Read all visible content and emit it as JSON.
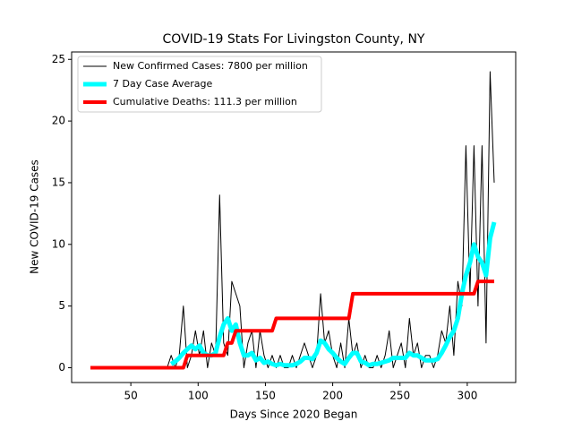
{
  "chart_data": {
    "type": "line",
    "title": "COVID-19 Stats For Livingston County, NY",
    "xlabel": "Days Since 2020 Began",
    "ylabel": "New COVID-19 Cases",
    "x": [
      20,
      23,
      26,
      29,
      32,
      35,
      38,
      41,
      44,
      47,
      50,
      53,
      56,
      59,
      62,
      65,
      68,
      71,
      74,
      77,
      80,
      83,
      86,
      89,
      92,
      95,
      98,
      101,
      104,
      107,
      110,
      113,
      116,
      119,
      122,
      125,
      128,
      131,
      134,
      137,
      140,
      143,
      146,
      149,
      152,
      155,
      158,
      161,
      164,
      167,
      170,
      173,
      176,
      179,
      182,
      185,
      188,
      191,
      194,
      197,
      200,
      203,
      206,
      209,
      212,
      215,
      218,
      221,
      224,
      227,
      230,
      233,
      236,
      239,
      242,
      245,
      248,
      251,
      254,
      257,
      260,
      263,
      266,
      269,
      272,
      275,
      278,
      281,
      284,
      287,
      290,
      293,
      296,
      299,
      302,
      305,
      308,
      311,
      314,
      317,
      320
    ],
    "series": [
      {
        "name": "New Confirmed Cases: 7800 per million",
        "color": "#000000",
        "width": 1,
        "values": [
          0,
          0,
          0,
          0,
          0,
          0,
          0,
          0,
          0,
          0,
          0,
          0,
          0,
          0,
          0,
          0,
          0,
          0,
          0,
          0,
          1,
          0,
          1,
          5,
          0,
          1,
          3,
          1,
          3,
          0,
          2,
          1,
          14,
          2,
          1,
          7,
          6,
          5,
          0,
          2,
          3,
          0,
          3,
          1,
          0,
          1,
          0,
          1,
          0,
          0,
          1,
          0,
          1,
          2,
          1,
          0,
          1,
          6,
          2,
          3,
          1,
          0,
          2,
          0,
          4,
          1,
          2,
          0,
          1,
          0,
          0,
          1,
          0,
          1,
          3,
          0,
          1,
          2,
          0,
          4,
          1,
          2,
          0,
          1,
          1,
          0,
          1,
          3,
          2,
          5,
          1,
          7,
          5,
          18,
          6,
          18,
          5,
          18,
          2,
          24,
          15
        ]
      },
      {
        "name": "7 Day Case Average",
        "color": "#00ffff",
        "width": 5,
        "values": [
          null,
          null,
          null,
          null,
          null,
          null,
          null,
          null,
          null,
          null,
          null,
          null,
          null,
          null,
          null,
          null,
          null,
          null,
          null,
          null,
          0.3,
          0.5,
          0.8,
          1.2,
          1.5,
          1.8,
          1.5,
          1.8,
          1.2,
          1.0,
          1.0,
          1.2,
          2.5,
          3.5,
          4.0,
          3.0,
          3.5,
          2.0,
          1.0,
          1.0,
          1.2,
          0.6,
          0.8,
          0.4,
          0.5,
          0.3,
          0.2,
          0.3,
          0.2,
          0.2,
          0.2,
          0.3,
          0.5,
          0.8,
          0.8,
          0.7,
          1.2,
          2.2,
          2.0,
          1.5,
          1.2,
          0.8,
          0.5,
          0.3,
          0.8,
          1.2,
          1.2,
          0.5,
          0.4,
          0.2,
          0.3,
          0.3,
          0.4,
          0.5,
          0.6,
          0.8,
          0.8,
          0.8,
          0.8,
          1.2,
          1.0,
          1.0,
          0.8,
          0.6,
          0.6,
          0.6,
          0.7,
          1.2,
          1.8,
          2.5,
          3.0,
          4.0,
          6.0,
          7.5,
          8.5,
          10.0,
          9.0,
          8.5,
          7.5,
          10.5,
          11.8
        ]
      },
      {
        "name": "Cumulative Deaths: 111.3 per million",
        "color": "#ff0000",
        "width": 4,
        "values": [
          0,
          0,
          0,
          0,
          0,
          0,
          0,
          0,
          0,
          0,
          0,
          0,
          0,
          0,
          0,
          0,
          0,
          0,
          0,
          0,
          0,
          0,
          0,
          0,
          1,
          1,
          1,
          1,
          1,
          1,
          1,
          1,
          1,
          1,
          2,
          2,
          3,
          3,
          3,
          3,
          3,
          3,
          3,
          3,
          3,
          3,
          4,
          4,
          4,
          4,
          4,
          4,
          4,
          4,
          4,
          4,
          4,
          4,
          4,
          4,
          4,
          4,
          4,
          4,
          4,
          6,
          6,
          6,
          6,
          6,
          6,
          6,
          6,
          6,
          6,
          6,
          6,
          6,
          6,
          6,
          6,
          6,
          6,
          6,
          6,
          6,
          6,
          6,
          6,
          6,
          6,
          6,
          6,
          6,
          6,
          6,
          7,
          7,
          7,
          7,
          7
        ]
      }
    ],
    "xlim": [
      6,
      336
    ],
    "ylim": [
      -1.2,
      25.6
    ],
    "xticks": [
      50,
      100,
      150,
      200,
      250,
      300
    ],
    "yticks": [
      0,
      5,
      10,
      15,
      20,
      25
    ],
    "legend": "upper left"
  }
}
